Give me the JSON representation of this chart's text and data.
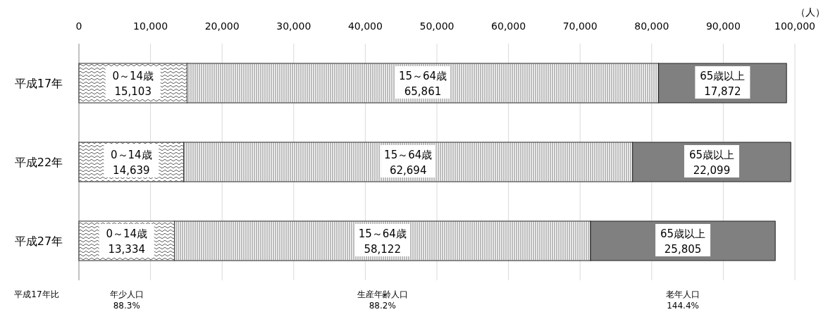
{
  "chart_data": {
    "type": "bar",
    "orientation": "horizontal",
    "stacked": true,
    "xlabel": "（人）",
    "categories": [
      "平成17年",
      "平成22年",
      "平成27年"
    ],
    "series": [
      {
        "name": "0～14歳",
        "color": "#ffffff",
        "values": [
          15103,
          14639,
          13334
        ],
        "value_labels": [
          "15,103",
          "14,639",
          "13,334"
        ]
      },
      {
        "name": "15～64歳",
        "color": "#ffffff",
        "values": [
          65861,
          62694,
          58122
        ],
        "value_labels": [
          "65,861",
          "62,694",
          "58,122"
        ]
      },
      {
        "name": "65歳以上",
        "color": "#808080",
        "values": [
          17872,
          22099,
          25805
        ],
        "value_labels": [
          "17,872",
          "22,099",
          "25,805"
        ]
      }
    ],
    "xlim": [
      0,
      100000
    ],
    "xticks": [
      0,
      {
        "value": 10000,
        "label": "10,000"
      },
      {
        "value": 20000,
        "label": "20,000"
      },
      {
        "value": 30000,
        "label": "30,000"
      },
      {
        "value": 40000,
        "label": "40,000"
      },
      {
        "value": 50000,
        "label": "50,000"
      },
      {
        "value": 60000,
        "label": "60,000"
      },
      {
        "value": 70000,
        "label": "70,000"
      },
      {
        "value": 80000,
        "label": "80,000"
      },
      {
        "value": 90000,
        "label": "90,000"
      },
      {
        "value": 100000,
        "label": "100,000"
      }
    ],
    "grid": "x",
    "annotations": [
      "平成17年比",
      "年少人口",
      "88.3%",
      "生産年齢人口",
      "88.2%",
      "老年人口",
      "144.4%"
    ]
  }
}
